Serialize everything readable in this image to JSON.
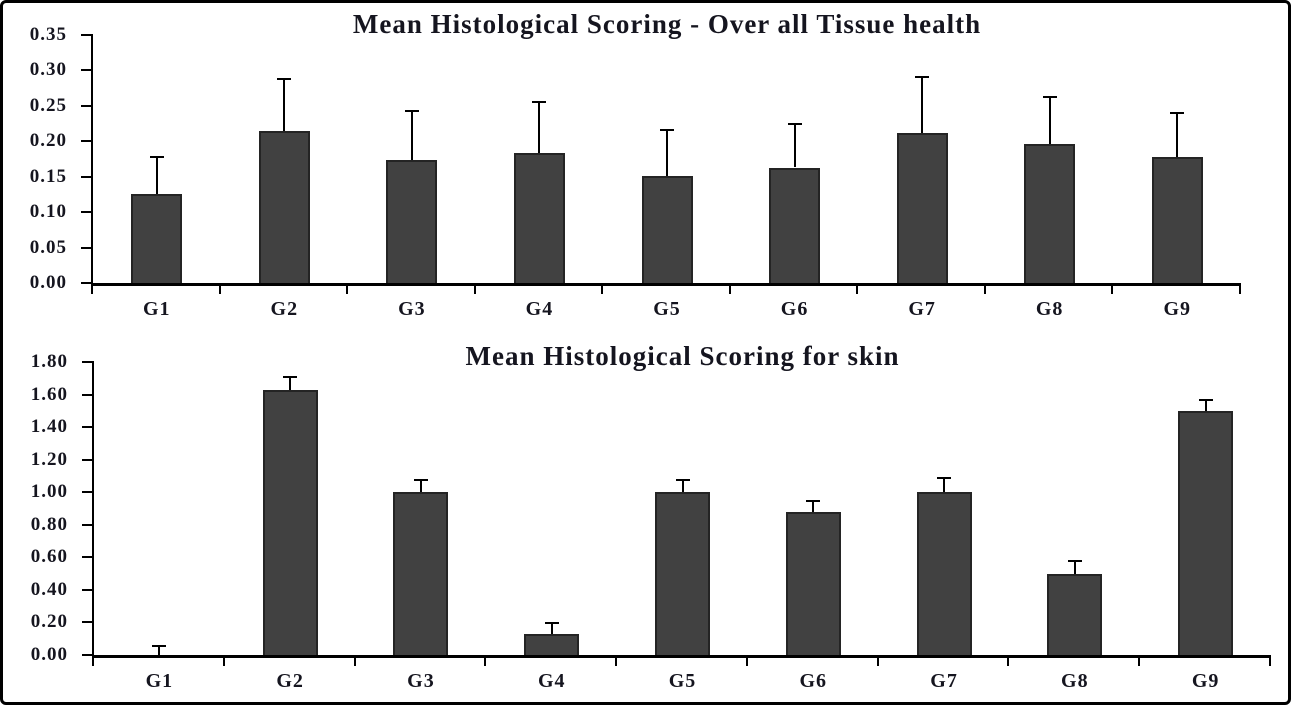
{
  "figure": {
    "background": "#ffffff",
    "border_color": "#000000",
    "text_color": "#15151f",
    "bar_fill_color": "#414141",
    "bar_border_color": "#242424",
    "axis_color": "#000000"
  },
  "chart_data": [
    {
      "type": "bar",
      "title": "Mean Histological Scoring - Over all Tissue health",
      "categories": [
        "G1",
        "G2",
        "G3",
        "G4",
        "G5",
        "G6",
        "G7",
        "G8",
        "G9"
      ],
      "values": [
        0.125,
        0.215,
        0.173,
        0.184,
        0.151,
        0.163,
        0.212,
        0.196,
        0.178
      ],
      "error_plus": [
        0.052,
        0.072,
        0.069,
        0.07,
        0.064,
        0.06,
        0.078,
        0.065,
        0.061
      ],
      "ylim": [
        0,
        0.35
      ],
      "ytick_labels": [
        "0.00",
        "0.05",
        "0.10",
        "0.15",
        "0.20",
        "0.25",
        "0.30",
        "0.35"
      ],
      "xlabel": "",
      "ylabel": "",
      "grid": false,
      "legend_position": "none"
    },
    {
      "type": "bar",
      "title": "Mean Histological Scoring for skin",
      "categories": [
        "G1",
        "G2",
        "G3",
        "G4",
        "G5",
        "G6",
        "G7",
        "G8",
        "G9"
      ],
      "values": [
        0.0,
        1.63,
        1.0,
        0.13,
        1.0,
        0.88,
        1.0,
        0.5,
        1.5
      ],
      "error_plus": [
        0.05,
        0.07,
        0.07,
        0.06,
        0.07,
        0.06,
        0.08,
        0.07,
        0.06
      ],
      "ylim": [
        0,
        1.8
      ],
      "ytick_labels": [
        "0.00",
        "0.20",
        "0.40",
        "0.60",
        "0.80",
        "1.00",
        "1.20",
        "1.40",
        "1.60",
        "1.80"
      ],
      "xlabel": "",
      "ylabel": "",
      "grid": false,
      "legend_position": "none"
    }
  ]
}
